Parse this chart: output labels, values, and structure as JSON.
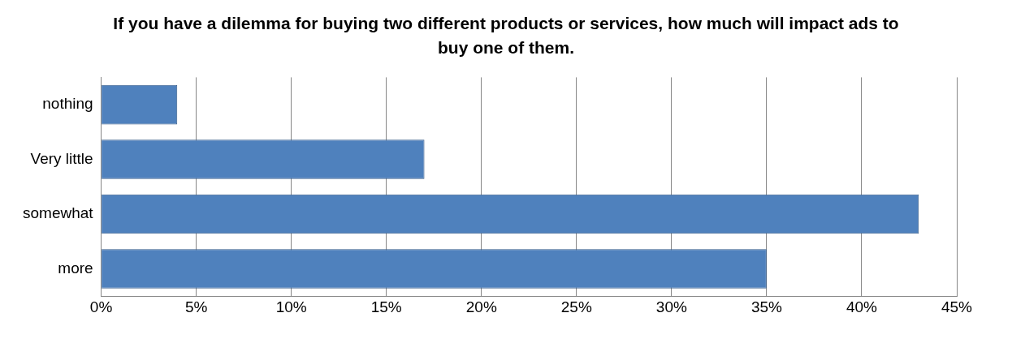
{
  "chart_data": {
    "type": "bar",
    "orientation": "horizontal",
    "title": "If you have a dilemma for buying two different products or services, how much will impact ads to buy one of them.",
    "categories": [
      "nothing",
      "Very little",
      "somewhat",
      "more"
    ],
    "values": [
      4,
      17,
      43,
      35
    ],
    "color": "#4f81bd",
    "xlim": [
      0,
      45
    ],
    "xticks": [
      {
        "value": 0,
        "label": "0%"
      },
      {
        "value": 5,
        "label": "5%"
      },
      {
        "value": 10,
        "label": "10%"
      },
      {
        "value": 15,
        "label": "15%"
      },
      {
        "value": 20,
        "label": "20%"
      },
      {
        "value": 25,
        "label": "25%"
      },
      {
        "value": 30,
        "label": "30%"
      },
      {
        "value": 35,
        "label": "35%"
      },
      {
        "value": 40,
        "label": "40%"
      },
      {
        "value": 45,
        "label": "45%"
      }
    ],
    "grid": "x",
    "legend": false
  }
}
